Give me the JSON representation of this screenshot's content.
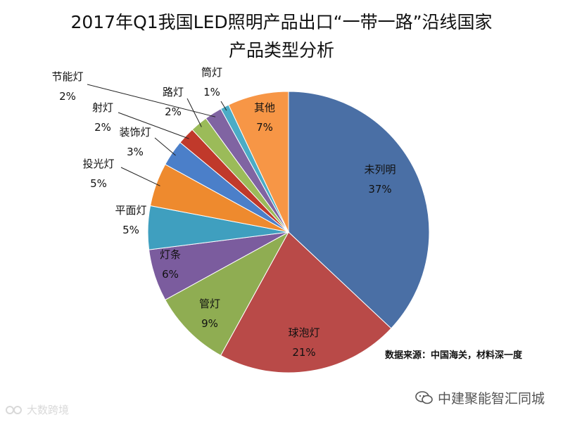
{
  "chart_data": {
    "type": "pie",
    "title_line1": "2017年Q1我国LED照明产品出口“一带一路”沿线国家",
    "title_line2": "产品类型分析",
    "categories": [
      "未列明",
      "球泡灯",
      "管灯",
      "灯条",
      "平面灯",
      "投光灯",
      "装饰灯",
      "射灯",
      "路灯",
      "节能灯",
      "筒灯",
      "其他"
    ],
    "values": [
      37,
      21,
      9,
      6,
      5,
      5,
      3,
      2,
      2,
      2,
      1,
      7
    ],
    "labels": [
      "37%",
      "21%",
      "9%",
      "6%",
      "5%",
      "5%",
      "3%",
      "2%",
      "2%",
      "2%",
      "1%",
      "7%"
    ],
    "colors": [
      "#4a6fa5",
      "#b94a48",
      "#8fad52",
      "#7b5c9e",
      "#3f9fbf",
      "#ee8a2e",
      "#4b7fc9",
      "#c0392b",
      "#9bbb59",
      "#8064a2",
      "#4bacc6",
      "#f79646"
    ],
    "start": "12 o'clock",
    "direction": "clockwise"
  },
  "source": "数据来源：中国海关，材料深一度",
  "watermark_left": "大数跨境",
  "watermark_right": "中建聚能智汇同城"
}
